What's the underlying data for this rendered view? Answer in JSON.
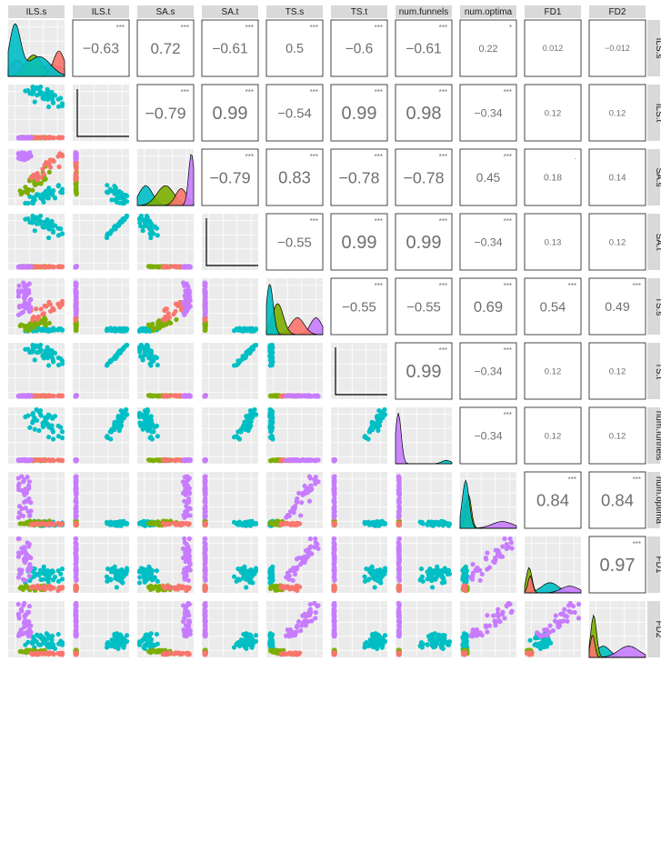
{
  "chart_data": {
    "type": "scatter",
    "variables": [
      "ILS.s",
      "ILS.t",
      "SA.s",
      "SA.t",
      "TS.s",
      "TS.t",
      "num.funnels",
      "num.optima",
      "FD1",
      "FD2"
    ],
    "groups": [
      {
        "key": "red",
        "color": "#F8766D"
      },
      {
        "key": "green",
        "color": "#7CAE00"
      },
      {
        "key": "teal",
        "color": "#00BFC4"
      },
      {
        "key": "purple",
        "color": "#C77CFF"
      }
    ],
    "correlations": [
      {
        "i": 0,
        "j": 1,
        "value": "−0.63",
        "stars": "***"
      },
      {
        "i": 0,
        "j": 2,
        "value": "0.72",
        "stars": "***"
      },
      {
        "i": 0,
        "j": 3,
        "value": "−0.61",
        "stars": "***"
      },
      {
        "i": 0,
        "j": 4,
        "value": "0.5",
        "stars": "***"
      },
      {
        "i": 0,
        "j": 5,
        "value": "−0.6",
        "stars": "***"
      },
      {
        "i": 0,
        "j": 6,
        "value": "−0.61",
        "stars": "***"
      },
      {
        "i": 0,
        "j": 7,
        "value": "0.22",
        "stars": "*"
      },
      {
        "i": 0,
        "j": 8,
        "value": "0.012",
        "stars": ""
      },
      {
        "i": 0,
        "j": 9,
        "value": "−0.012",
        "stars": ""
      },
      {
        "i": 1,
        "j": 2,
        "value": "−0.79",
        "stars": "***"
      },
      {
        "i": 1,
        "j": 3,
        "value": "0.99",
        "stars": "***"
      },
      {
        "i": 1,
        "j": 4,
        "value": "−0.54",
        "stars": "***"
      },
      {
        "i": 1,
        "j": 5,
        "value": "0.99",
        "stars": "***"
      },
      {
        "i": 1,
        "j": 6,
        "value": "0.98",
        "stars": "***"
      },
      {
        "i": 1,
        "j": 7,
        "value": "−0.34",
        "stars": "***"
      },
      {
        "i": 1,
        "j": 8,
        "value": "0.12",
        "stars": ""
      },
      {
        "i": 1,
        "j": 9,
        "value": "0.12",
        "stars": ""
      },
      {
        "i": 2,
        "j": 3,
        "value": "−0.79",
        "stars": "***"
      },
      {
        "i": 2,
        "j": 4,
        "value": "0.83",
        "stars": "***"
      },
      {
        "i": 2,
        "j": 5,
        "value": "−0.78",
        "stars": "***"
      },
      {
        "i": 2,
        "j": 6,
        "value": "−0.78",
        "stars": "***"
      },
      {
        "i": 2,
        "j": 7,
        "value": "0.45",
        "stars": "***"
      },
      {
        "i": 2,
        "j": 8,
        "value": "0.18",
        "stars": "."
      },
      {
        "i": 2,
        "j": 9,
        "value": "0.14",
        "stars": ""
      },
      {
        "i": 3,
        "j": 4,
        "value": "−0.55",
        "stars": "***"
      },
      {
        "i": 3,
        "j": 5,
        "value": "0.99",
        "stars": "***"
      },
      {
        "i": 3,
        "j": 6,
        "value": "0.99",
        "stars": "***"
      },
      {
        "i": 3,
        "j": 7,
        "value": "−0.34",
        "stars": "***"
      },
      {
        "i": 3,
        "j": 8,
        "value": "0.13",
        "stars": ""
      },
      {
        "i": 3,
        "j": 9,
        "value": "0.12",
        "stars": ""
      },
      {
        "i": 4,
        "j": 5,
        "value": "−0.55",
        "stars": "***"
      },
      {
        "i": 4,
        "j": 6,
        "value": "−0.55",
        "stars": "***"
      },
      {
        "i": 4,
        "j": 7,
        "value": "0.69",
        "stars": "***"
      },
      {
        "i": 4,
        "j": 8,
        "value": "0.54",
        "stars": "***"
      },
      {
        "i": 4,
        "j": 9,
        "value": "0.49",
        "stars": "***"
      },
      {
        "i": 5,
        "j": 6,
        "value": "0.99",
        "stars": "***"
      },
      {
        "i": 5,
        "j": 7,
        "value": "−0.34",
        "stars": "***"
      },
      {
        "i": 5,
        "j": 8,
        "value": "0.12",
        "stars": ""
      },
      {
        "i": 5,
        "j": 9,
        "value": "0.12",
        "stars": ""
      },
      {
        "i": 6,
        "j": 7,
        "value": "−0.34",
        "stars": "***"
      },
      {
        "i": 6,
        "j": 8,
        "value": "0.12",
        "stars": ""
      },
      {
        "i": 6,
        "j": 9,
        "value": "0.12",
        "stars": ""
      },
      {
        "i": 7,
        "j": 8,
        "value": "0.84",
        "stars": "***"
      },
      {
        "i": 7,
        "j": 9,
        "value": "0.84",
        "stars": "***"
      },
      {
        "i": 8,
        "j": 9,
        "value": "0.97",
        "stars": "***"
      }
    ],
    "axis_ticks_shown": false,
    "grid": true,
    "legend": "none"
  }
}
